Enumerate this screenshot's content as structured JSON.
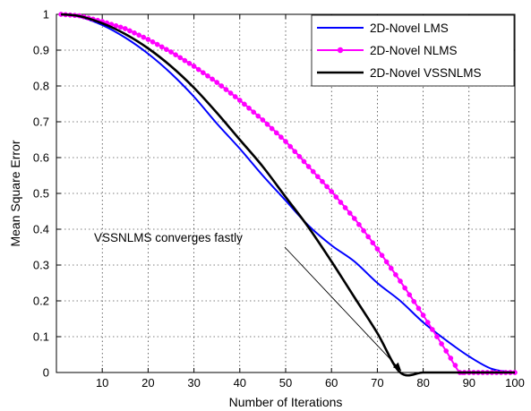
{
  "chart_data": {
    "type": "line",
    "title": "",
    "xlabel": "Number of Iterations",
    "ylabel": "Mean Square Error",
    "xlim": [
      0,
      100
    ],
    "ylim": [
      0,
      1
    ],
    "xticks": [
      10,
      20,
      30,
      40,
      50,
      60,
      70,
      80,
      90,
      100
    ],
    "yticks": [
      0,
      0.1,
      0.2,
      0.3,
      0.4,
      0.5,
      0.6,
      0.7,
      0.8,
      0.9,
      1
    ],
    "grid": true,
    "legend_position": "top-right",
    "annotation": {
      "text": "VSSNLMS converges fastly",
      "points_to": [
        75,
        0
      ]
    },
    "series": [
      {
        "name": "2D-Novel LMS",
        "color": "#0000ff",
        "marker": "none",
        "x": [
          1,
          5,
          10,
          15,
          20,
          25,
          30,
          35,
          40,
          45,
          50,
          55,
          60,
          65,
          70,
          75,
          80,
          85,
          90,
          95,
          100
        ],
        "y": [
          1.0,
          0.993,
          0.97,
          0.935,
          0.89,
          0.835,
          0.77,
          0.695,
          0.625,
          0.55,
          0.48,
          0.41,
          0.355,
          0.31,
          0.25,
          0.2,
          0.14,
          0.09,
          0.045,
          0.01,
          0.0
        ]
      },
      {
        "name": "2D-Novel NLMS",
        "color": "#ff00ff",
        "marker": "circle",
        "x": [
          1,
          5,
          10,
          15,
          20,
          25,
          30,
          35,
          40,
          45,
          50,
          55,
          60,
          65,
          70,
          75,
          80,
          85,
          88,
          90,
          95,
          100
        ],
        "y": [
          1.0,
          0.996,
          0.98,
          0.96,
          0.93,
          0.895,
          0.855,
          0.81,
          0.76,
          0.705,
          0.645,
          0.575,
          0.505,
          0.43,
          0.345,
          0.255,
          0.16,
          0.06,
          0.0,
          0.0,
          0.0,
          0.0
        ]
      },
      {
        "name": "2D-Novel VSSNLMS",
        "color": "#000000",
        "marker": "none",
        "x": [
          1,
          5,
          10,
          15,
          20,
          25,
          30,
          35,
          40,
          45,
          50,
          55,
          60,
          65,
          70,
          75,
          80,
          85,
          90,
          95,
          100
        ],
        "y": [
          1.0,
          0.995,
          0.975,
          0.945,
          0.905,
          0.855,
          0.795,
          0.725,
          0.65,
          0.575,
          0.49,
          0.405,
          0.31,
          0.21,
          0.11,
          0.0,
          0.0,
          0.0,
          0.0,
          0.0,
          0.0
        ]
      }
    ]
  }
}
